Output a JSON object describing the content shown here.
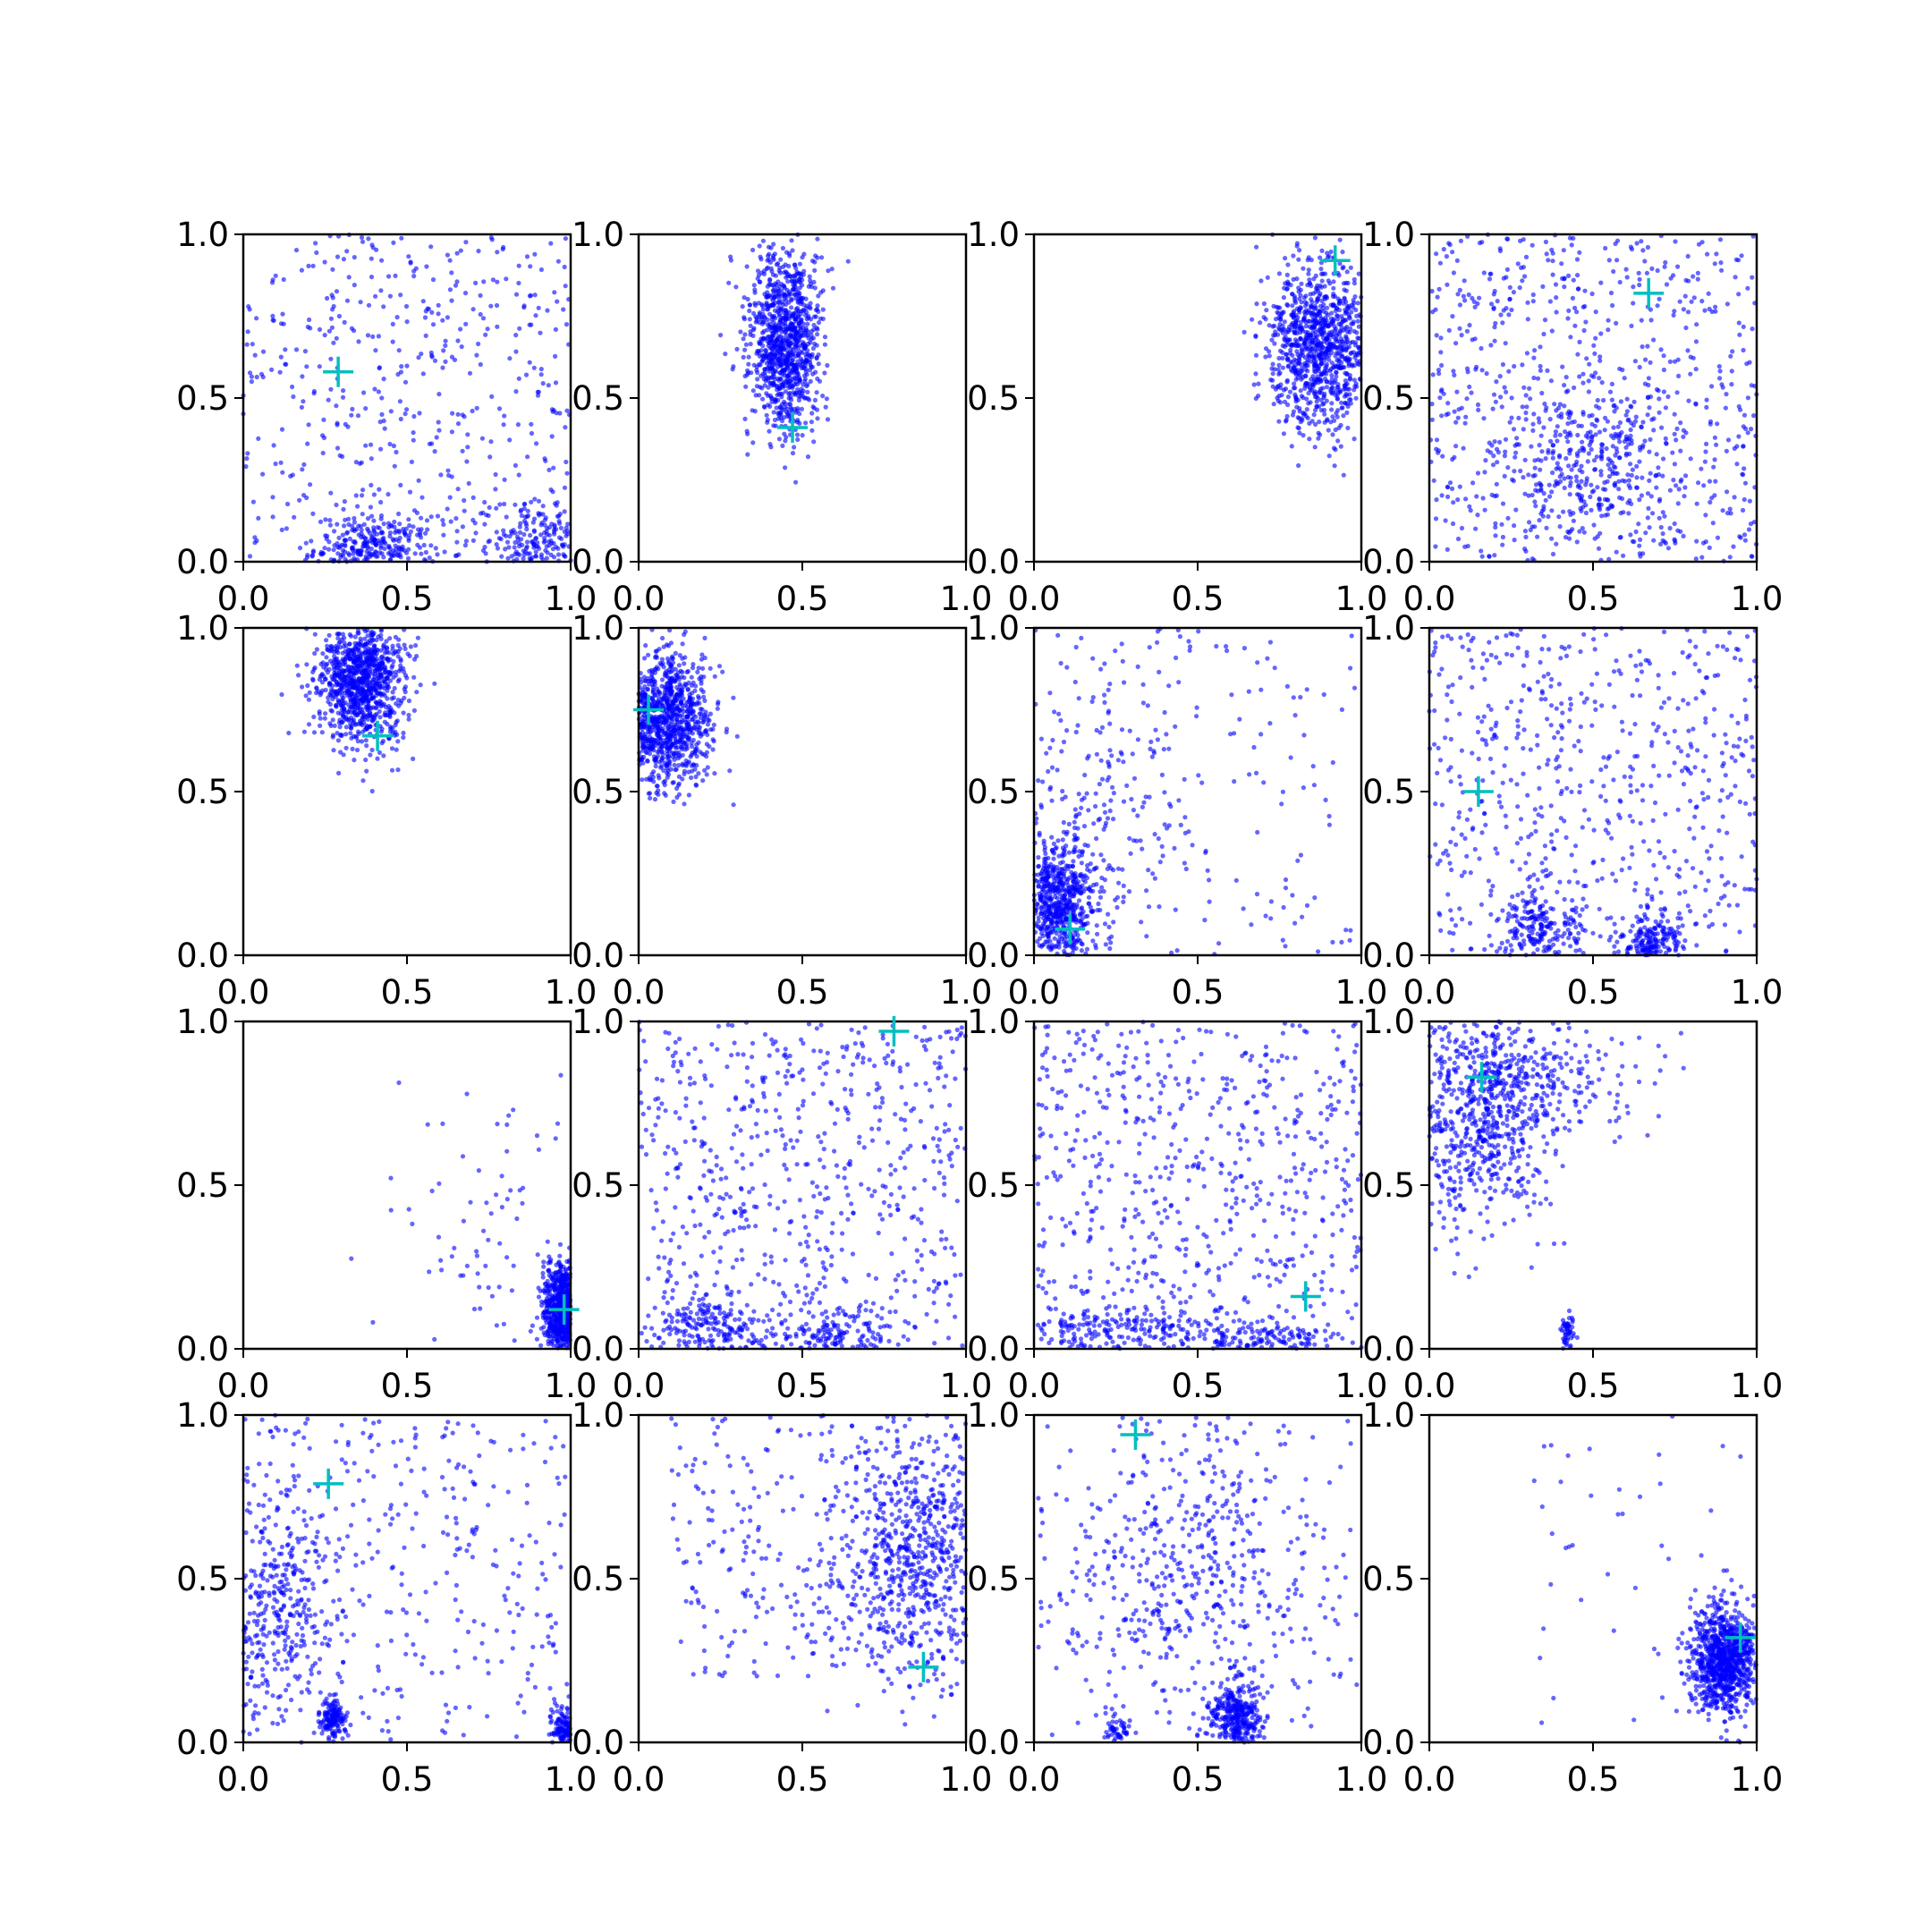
{
  "figure": {
    "point_color": "#0000ff",
    "marker_color": "#00bfbf",
    "marker_symbol": "+",
    "points_per_panel": 1000
  },
  "chart_data": [
    {
      "type": "scatter",
      "row": 1,
      "col": 1,
      "xlim": [
        0,
        1
      ],
      "ylim": [
        0,
        1
      ],
      "xticks": [
        "0.0",
        "0.5",
        "1.0"
      ],
      "yticks": [
        "0.0",
        "0.5",
        "1.0"
      ],
      "marker": {
        "x": 0.29,
        "y": 0.58
      },
      "clusters": [
        {
          "w": 0.5,
          "kind": "uniform",
          "x0": 0,
          "x1": 1,
          "y0": 0,
          "y1": 1
        },
        {
          "w": 0.3,
          "kind": "gauss",
          "mx": 0.4,
          "my": 0.04,
          "sx": 0.09,
          "sy": 0.05
        },
        {
          "w": 0.2,
          "kind": "gauss",
          "mx": 0.9,
          "my": 0.05,
          "sx": 0.08,
          "sy": 0.06
        }
      ]
    },
    {
      "type": "scatter",
      "row": 1,
      "col": 2,
      "xlim": [
        0,
        1
      ],
      "ylim": [
        0,
        1
      ],
      "xticks": [
        "0.0",
        "0.5",
        "1.0"
      ],
      "yticks": [
        "0.0",
        "0.5",
        "1.0"
      ],
      "marker": {
        "x": 0.47,
        "y": 0.41
      },
      "clusters": [
        {
          "w": 1.0,
          "kind": "gauss",
          "mx": 0.45,
          "my": 0.68,
          "sx": 0.055,
          "sy": 0.14
        }
      ]
    },
    {
      "type": "scatter",
      "row": 1,
      "col": 3,
      "xlim": [
        0,
        1
      ],
      "ylim": [
        0,
        1
      ],
      "xticks": [
        "0.0",
        "0.5",
        "1.0"
      ],
      "yticks": [
        "0.0",
        "0.5",
        "1.0"
      ],
      "marker": {
        "x": 0.92,
        "y": 0.92
      },
      "clusters": [
        {
          "w": 1.0,
          "kind": "gauss",
          "mx": 0.87,
          "my": 0.66,
          "sx": 0.08,
          "sy": 0.13
        }
      ]
    },
    {
      "type": "scatter",
      "row": 1,
      "col": 4,
      "xlim": [
        0,
        1
      ],
      "ylim": [
        0,
        1
      ],
      "xticks": [
        "0.0",
        "0.5",
        "1.0"
      ],
      "yticks": [
        "0.0",
        "0.5",
        "1.0"
      ],
      "marker": {
        "x": 0.67,
        "y": 0.82
      },
      "clusters": [
        {
          "w": 0.7,
          "kind": "uniform",
          "x0": 0,
          "x1": 1,
          "y0": 0,
          "y1": 1
        },
        {
          "w": 0.3,
          "kind": "gauss",
          "mx": 0.5,
          "my": 0.3,
          "sx": 0.12,
          "sy": 0.12
        }
      ]
    },
    {
      "type": "scatter",
      "row": 2,
      "col": 1,
      "xlim": [
        0,
        1
      ],
      "ylim": [
        0,
        1
      ],
      "xticks": [
        "0.0",
        "0.5",
        "1.0"
      ],
      "yticks": [
        "0.0",
        "0.5",
        "1.0"
      ],
      "marker": {
        "x": 0.41,
        "y": 0.67
      },
      "clusters": [
        {
          "w": 1.0,
          "kind": "gauss",
          "mx": 0.36,
          "my": 0.84,
          "sx": 0.07,
          "sy": 0.1
        }
      ]
    },
    {
      "type": "scatter",
      "row": 2,
      "col": 2,
      "xlim": [
        0,
        1
      ],
      "ylim": [
        0,
        1
      ],
      "xticks": [
        "0.0",
        "0.5",
        "1.0"
      ],
      "yticks": [
        "0.0",
        "0.5",
        "1.0"
      ],
      "marker": {
        "x": 0.03,
        "y": 0.75
      },
      "clusters": [
        {
          "w": 1.0,
          "kind": "gauss",
          "mx": 0.08,
          "my": 0.73,
          "sx": 0.07,
          "sy": 0.1
        }
      ]
    },
    {
      "type": "scatter",
      "row": 2,
      "col": 3,
      "xlim": [
        0,
        1
      ],
      "ylim": [
        0,
        1
      ],
      "xticks": [
        "0.0",
        "0.5",
        "1.0"
      ],
      "yticks": [
        "0.0",
        "0.5",
        "1.0"
      ],
      "marker": {
        "x": 0.11,
        "y": 0.08
      },
      "clusters": [
        {
          "w": 0.6,
          "kind": "gauss",
          "mx": 0.08,
          "my": 0.16,
          "sx": 0.05,
          "sy": 0.09
        },
        {
          "w": 0.25,
          "kind": "gauss",
          "mx": 0.15,
          "my": 0.4,
          "sx": 0.15,
          "sy": 0.25
        },
        {
          "w": 0.15,
          "kind": "uniform",
          "x0": 0,
          "x1": 1,
          "y0": 0,
          "y1": 1
        }
      ]
    },
    {
      "type": "scatter",
      "row": 2,
      "col": 4,
      "xlim": [
        0,
        1
      ],
      "ylim": [
        0,
        1
      ],
      "xticks": [
        "0.0",
        "0.5",
        "1.0"
      ],
      "yticks": [
        "0.0",
        "0.5",
        "1.0"
      ],
      "marker": {
        "x": 0.15,
        "y": 0.5
      },
      "clusters": [
        {
          "w": 0.6,
          "kind": "uniform",
          "x0": 0,
          "x1": 1,
          "y0": 0,
          "y1": 1
        },
        {
          "w": 0.2,
          "kind": "gauss",
          "mx": 0.33,
          "my": 0.08,
          "sx": 0.07,
          "sy": 0.06
        },
        {
          "w": 0.2,
          "kind": "gauss",
          "mx": 0.68,
          "my": 0.04,
          "sx": 0.05,
          "sy": 0.04
        }
      ]
    },
    {
      "type": "scatter",
      "row": 3,
      "col": 1,
      "xlim": [
        0,
        1
      ],
      "ylim": [
        0,
        1
      ],
      "xticks": [
        "0.0",
        "0.5",
        "1.0"
      ],
      "yticks": [
        "0.0",
        "0.5",
        "1.0"
      ],
      "marker": {
        "x": 0.98,
        "y": 0.12
      },
      "clusters": [
        {
          "w": 0.9,
          "kind": "gauss",
          "mx": 0.98,
          "my": 0.12,
          "sx": 0.03,
          "sy": 0.07
        },
        {
          "w": 0.1,
          "kind": "gauss",
          "mx": 0.8,
          "my": 0.4,
          "sx": 0.18,
          "sy": 0.25
        }
      ]
    },
    {
      "type": "scatter",
      "row": 3,
      "col": 2,
      "xlim": [
        0,
        1
      ],
      "ylim": [
        0,
        1
      ],
      "xticks": [
        "0.0",
        "0.5",
        "1.0"
      ],
      "yticks": [
        "0.0",
        "0.5",
        "1.0"
      ],
      "marker": {
        "x": 0.78,
        "y": 0.97
      },
      "clusters": [
        {
          "w": 0.65,
          "kind": "uniform",
          "x0": 0,
          "x1": 1,
          "y0": 0,
          "y1": 1
        },
        {
          "w": 0.2,
          "kind": "gauss",
          "mx": 0.22,
          "my": 0.06,
          "sx": 0.1,
          "sy": 0.05
        },
        {
          "w": 0.15,
          "kind": "gauss",
          "mx": 0.6,
          "my": 0.04,
          "sx": 0.08,
          "sy": 0.04
        }
      ]
    },
    {
      "type": "scatter",
      "row": 3,
      "col": 3,
      "xlim": [
        0,
        1
      ],
      "ylim": [
        0,
        1
      ],
      "xticks": [
        "0.0",
        "0.5",
        "1.0"
      ],
      "yticks": [
        "0.0",
        "0.5",
        "1.0"
      ],
      "marker": {
        "x": 0.83,
        "y": 0.16
      },
      "clusters": [
        {
          "w": 0.65,
          "kind": "uniform",
          "x0": 0,
          "x1": 1,
          "y0": 0,
          "y1": 1
        },
        {
          "w": 0.2,
          "kind": "gauss",
          "mx": 0.25,
          "my": 0.05,
          "sx": 0.15,
          "sy": 0.04
        },
        {
          "w": 0.15,
          "kind": "gauss",
          "mx": 0.7,
          "my": 0.03,
          "sx": 0.12,
          "sy": 0.03
        }
      ]
    },
    {
      "type": "scatter",
      "row": 3,
      "col": 4,
      "xlim": [
        0,
        1
      ],
      "ylim": [
        0,
        1
      ],
      "xticks": [
        "0.0",
        "0.5",
        "1.0"
      ],
      "yticks": [
        "0.0",
        "0.5",
        "1.0"
      ],
      "marker": {
        "x": 0.16,
        "y": 0.83
      },
      "clusters": [
        {
          "w": 0.75,
          "kind": "gauss",
          "mx": 0.15,
          "my": 0.72,
          "sx": 0.12,
          "sy": 0.16
        },
        {
          "w": 0.2,
          "kind": "gauss",
          "mx": 0.35,
          "my": 0.85,
          "sx": 0.2,
          "sy": 0.1
        },
        {
          "w": 0.05,
          "kind": "gauss",
          "mx": 0.42,
          "my": 0.06,
          "sx": 0.01,
          "sy": 0.03
        }
      ]
    },
    {
      "type": "scatter",
      "row": 4,
      "col": 1,
      "xlim": [
        0,
        1
      ],
      "ylim": [
        0,
        1
      ],
      "xticks": [
        "0.0",
        "0.5",
        "1.0"
      ],
      "yticks": [
        "0.0",
        "0.5",
        "1.0"
      ],
      "marker": {
        "x": 0.26,
        "y": 0.79
      },
      "clusters": [
        {
          "w": 0.35,
          "kind": "gauss",
          "mx": 0.1,
          "my": 0.4,
          "sx": 0.08,
          "sy": 0.18
        },
        {
          "w": 0.15,
          "kind": "gauss",
          "mx": 0.27,
          "my": 0.07,
          "sx": 0.02,
          "sy": 0.03
        },
        {
          "w": 0.35,
          "kind": "uniform",
          "x0": 0,
          "x1": 1,
          "y0": 0,
          "y1": 1
        },
        {
          "w": 0.15,
          "kind": "gauss",
          "mx": 0.98,
          "my": 0.04,
          "sx": 0.02,
          "sy": 0.03
        }
      ]
    },
    {
      "type": "scatter",
      "row": 4,
      "col": 2,
      "xlim": [
        0,
        1
      ],
      "ylim": [
        0,
        1
      ],
      "xticks": [
        "0.0",
        "0.5",
        "1.0"
      ],
      "yticks": [
        "0.0",
        "0.5",
        "1.0"
      ],
      "marker": {
        "x": 0.87,
        "y": 0.23
      },
      "clusters": [
        {
          "w": 0.7,
          "kind": "gauss",
          "mx": 0.85,
          "my": 0.55,
          "sx": 0.13,
          "sy": 0.2
        },
        {
          "w": 0.3,
          "kind": "uniform",
          "x0": 0.1,
          "x1": 1,
          "y0": 0.2,
          "y1": 1
        }
      ]
    },
    {
      "type": "scatter",
      "row": 4,
      "col": 3,
      "xlim": [
        0,
        1
      ],
      "ylim": [
        0,
        1
      ],
      "xticks": [
        "0.0",
        "0.5",
        "1.0"
      ],
      "yticks": [
        "0.0",
        "0.5",
        "1.0"
      ],
      "marker": {
        "x": 0.31,
        "y": 0.94
      },
      "clusters": [
        {
          "w": 0.35,
          "kind": "gauss",
          "mx": 0.62,
          "my": 0.08,
          "sx": 0.04,
          "sy": 0.05
        },
        {
          "w": 0.5,
          "kind": "gauss",
          "mx": 0.5,
          "my": 0.55,
          "sx": 0.22,
          "sy": 0.25
        },
        {
          "w": 0.05,
          "kind": "gauss",
          "mx": 0.26,
          "my": 0.04,
          "sx": 0.02,
          "sy": 0.02
        },
        {
          "w": 0.1,
          "kind": "uniform",
          "x0": 0,
          "x1": 1,
          "y0": 0,
          "y1": 1
        }
      ]
    },
    {
      "type": "scatter",
      "row": 4,
      "col": 4,
      "xlim": [
        0,
        1
      ],
      "ylim": [
        0,
        1
      ],
      "xticks": [
        "0.0",
        "0.5",
        "1.0"
      ],
      "yticks": [
        "0.0",
        "0.5",
        "1.0"
      ],
      "marker": {
        "x": 0.95,
        "y": 0.32
      },
      "clusters": [
        {
          "w": 0.95,
          "kind": "gauss",
          "mx": 0.9,
          "my": 0.25,
          "sx": 0.05,
          "sy": 0.08
        },
        {
          "w": 0.05,
          "kind": "uniform",
          "x0": 0.3,
          "x1": 1,
          "y0": 0,
          "y1": 1
        }
      ]
    }
  ]
}
